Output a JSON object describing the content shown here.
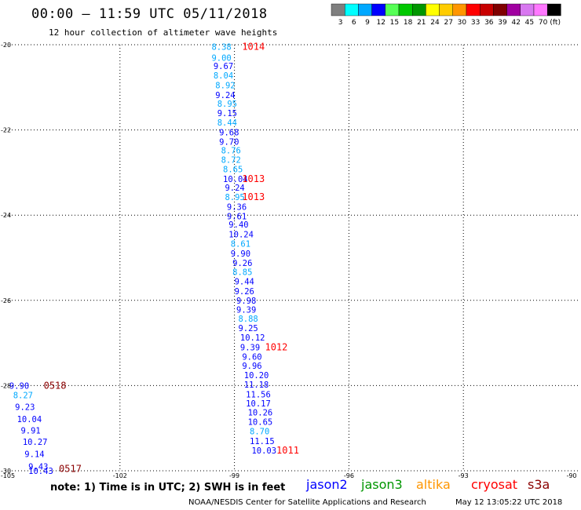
{
  "header": {
    "title": "00:00 — 11:59 UTC 05/11/2018",
    "subtitle": "12 hour collection of altimeter wave heights"
  },
  "legend": {
    "unit": "(ft)",
    "bins": [
      {
        "label": "3",
        "color": "#7f7f7f"
      },
      {
        "label": "6",
        "color": "#00ffff"
      },
      {
        "label": "9",
        "color": "#00a8ff"
      },
      {
        "label": "12",
        "color": "#0000ff"
      },
      {
        "label": "15",
        "color": "#55ff55"
      },
      {
        "label": "18",
        "color": "#00c800"
      },
      {
        "label": "21",
        "color": "#009600"
      },
      {
        "label": "24",
        "color": "#ffff00"
      },
      {
        "label": "27",
        "color": "#ffcc00"
      },
      {
        "label": "30",
        "color": "#ff9600"
      },
      {
        "label": "33",
        "color": "#ff0000"
      },
      {
        "label": "36",
        "color": "#c80000"
      },
      {
        "label": "39",
        "color": "#7f0000"
      },
      {
        "label": "42",
        "color": "#a000a0"
      },
      {
        "label": "45",
        "color": "#d878f0"
      },
      {
        "label": "70",
        "color": "#ff78ff"
      },
      {
        "label": "",
        "color": "#000000"
      }
    ]
  },
  "axes": {
    "lon_ticks": [
      "-105",
      "-102",
      "-99",
      "-96",
      "-93",
      "-90"
    ],
    "lat_ticks": [
      "-20",
      "-22",
      "-24",
      "-26",
      "-28",
      "-30"
    ]
  },
  "chart_data": {
    "type": "scatter",
    "xlim": [
      -105,
      -90
    ],
    "ylim": [
      -30,
      -20
    ],
    "grid": true,
    "tracks": [
      {
        "name": "track-1",
        "points": [
          {
            "lon": -99.6,
            "lat": -20.05,
            "v": "8.38",
            "c": "#00a8ff"
          },
          {
            "lon": -99.6,
            "lat": -20.3,
            "v": "9.00",
            "c": "#00a8ff"
          },
          {
            "lon": -99.55,
            "lat": -20.5,
            "v": "9.67",
            "c": "#0000ff"
          },
          {
            "lon": -99.55,
            "lat": -20.72,
            "v": "8.04",
            "c": "#00a8ff"
          },
          {
            "lon": -99.5,
            "lat": -20.95,
            "v": "8.92",
            "c": "#00a8ff"
          },
          {
            "lon": -99.5,
            "lat": -21.18,
            "v": "9.24",
            "c": "#0000ff"
          },
          {
            "lon": -99.45,
            "lat": -21.38,
            "v": "8.95",
            "c": "#00a8ff"
          },
          {
            "lon": -99.45,
            "lat": -21.6,
            "v": "9.15",
            "c": "#0000ff"
          },
          {
            "lon": -99.45,
            "lat": -21.82,
            "v": "8.44",
            "c": "#00a8ff"
          },
          {
            "lon": -99.4,
            "lat": -22.05,
            "v": "9.68",
            "c": "#0000ff"
          },
          {
            "lon": -99.4,
            "lat": -22.27,
            "v": "9.70",
            "c": "#0000ff"
          },
          {
            "lon": -99.35,
            "lat": -22.48,
            "v": "8.76",
            "c": "#00a8ff"
          },
          {
            "lon": -99.35,
            "lat": -22.7,
            "v": "8.72",
            "c": "#00a8ff"
          },
          {
            "lon": -99.3,
            "lat": -22.92,
            "v": "8.65",
            "c": "#00a8ff"
          },
          {
            "lon": -99.3,
            "lat": -23.15,
            "v": "10.04",
            "c": "#0000ff"
          },
          {
            "lon": -99.25,
            "lat": -23.35,
            "v": "9.24",
            "c": "#0000ff"
          },
          {
            "lon": -99.25,
            "lat": -23.57,
            "v": "8.95",
            "c": "#00a8ff"
          },
          {
            "lon": -99.2,
            "lat": -23.8,
            "v": "9.36",
            "c": "#0000ff"
          },
          {
            "lon": -99.2,
            "lat": -24.02,
            "v": "9.61",
            "c": "#0000ff"
          },
          {
            "lon": -99.15,
            "lat": -24.22,
            "v": "9.40",
            "c": "#0000ff"
          },
          {
            "lon": -99.15,
            "lat": -24.45,
            "v": "10.24",
            "c": "#0000ff"
          },
          {
            "lon": -99.1,
            "lat": -24.67,
            "v": "8.61",
            "c": "#00a8ff"
          },
          {
            "lon": -99.1,
            "lat": -24.9,
            "v": "9.90",
            "c": "#0000ff"
          },
          {
            "lon": -99.05,
            "lat": -25.12,
            "v": "9.26",
            "c": "#0000ff"
          },
          {
            "lon": -99.05,
            "lat": -25.33,
            "v": "8.85",
            "c": "#00a8ff"
          },
          {
            "lon": -99.0,
            "lat": -25.55,
            "v": "9.44",
            "c": "#0000ff"
          },
          {
            "lon": -99.0,
            "lat": -25.78,
            "v": "9.26",
            "c": "#0000ff"
          },
          {
            "lon": -98.95,
            "lat": -26.0,
            "v": "9.98",
            "c": "#0000ff"
          },
          {
            "lon": -98.95,
            "lat": -26.22,
            "v": "9.39",
            "c": "#0000ff"
          },
          {
            "lon": -98.9,
            "lat": -26.43,
            "v": "8.88",
            "c": "#00a8ff"
          },
          {
            "lon": -98.9,
            "lat": -26.65,
            "v": "9.25",
            "c": "#0000ff"
          },
          {
            "lon": -98.85,
            "lat": -26.87,
            "v": "10.12",
            "c": "#0000ff"
          },
          {
            "lon": -98.85,
            "lat": -27.1,
            "v": "9.39",
            "c": "#0000ff"
          },
          {
            "lon": -98.8,
            "lat": -27.32,
            "v": "9.60",
            "c": "#0000ff"
          },
          {
            "lon": -98.8,
            "lat": -27.53,
            "v": "9.96",
            "c": "#0000ff"
          },
          {
            "lon": -98.75,
            "lat": -27.75,
            "v": "10.20",
            "c": "#0000ff"
          },
          {
            "lon": -98.75,
            "lat": -27.97,
            "v": "11.18",
            "c": "#0000ff"
          },
          {
            "lon": -98.7,
            "lat": -28.2,
            "v": "11.56",
            "c": "#0000ff"
          },
          {
            "lon": -98.7,
            "lat": -28.42,
            "v": "10.17",
            "c": "#0000ff"
          },
          {
            "lon": -98.65,
            "lat": -28.63,
            "v": "10.26",
            "c": "#0000ff"
          },
          {
            "lon": -98.65,
            "lat": -28.85,
            "v": "10.65",
            "c": "#0000ff"
          },
          {
            "lon": -98.6,
            "lat": -29.07,
            "v": "8.70",
            "c": "#00a8ff"
          },
          {
            "lon": -98.6,
            "lat": -29.3,
            "v": "11.15",
            "c": "#0000ff"
          },
          {
            "lon": -98.55,
            "lat": -29.52,
            "v": "10.03",
            "c": "#0000ff"
          }
        ]
      },
      {
        "name": "track-2",
        "points": [
          {
            "lon": -104.9,
            "lat": -28.0,
            "v": "9.90",
            "c": "#0000ff"
          },
          {
            "lon": -104.8,
            "lat": -28.22,
            "v": "8.27",
            "c": "#00a8ff"
          },
          {
            "lon": -104.75,
            "lat": -28.5,
            "v": "9.23",
            "c": "#0000ff"
          },
          {
            "lon": -104.7,
            "lat": -28.78,
            "v": "10.04",
            "c": "#0000ff"
          },
          {
            "lon": -104.6,
            "lat": -29.05,
            "v": "9.91",
            "c": "#0000ff"
          },
          {
            "lon": -104.55,
            "lat": -29.32,
            "v": "10.27",
            "c": "#0000ff"
          },
          {
            "lon": -104.5,
            "lat": -29.6,
            "v": "9.14",
            "c": "#0000ff"
          },
          {
            "lon": -104.4,
            "lat": -29.9,
            "v": "9.43",
            "c": "#0000ff"
          },
          {
            "lon": -104.4,
            "lat": -30.0,
            "v": "10.43",
            "c": "#0000ff"
          }
        ]
      }
    ],
    "times": [
      {
        "lon": -98.8,
        "lat": -20.05,
        "t": "1014",
        "c": "#ff0000"
      },
      {
        "lon": -98.8,
        "lat": -23.15,
        "t": "1013",
        "c": "#ff0000"
      },
      {
        "lon": -98.8,
        "lat": -23.57,
        "t": "1013",
        "c": "#ff0000"
      },
      {
        "lon": -98.2,
        "lat": -27.1,
        "t": "1012",
        "c": "#ff0000"
      },
      {
        "lon": -97.9,
        "lat": -29.52,
        "t": "1011",
        "c": "#ff0000"
      },
      {
        "lon": -104.0,
        "lat": -28.0,
        "t": "0518",
        "c": "#8b0000"
      },
      {
        "lon": -103.6,
        "lat": -29.95,
        "t": "0517",
        "c": "#8b0000"
      }
    ]
  },
  "notes": {
    "text": "note: 1) Time is in UTC; 2) SWH is in feet"
  },
  "satellites": [
    {
      "name": "jason2",
      "color": "#0000ff"
    },
    {
      "name": "jason3",
      "color": "#009600"
    },
    {
      "name": "altika",
      "color": "#ff9600"
    },
    {
      "name": "cryosat",
      "color": "#ff0000"
    },
    {
      "name": "s3a",
      "color": "#8b0000"
    }
  ],
  "footer": {
    "credit": "NOAA/NESDIS Center for Satellite Applications and Research",
    "timestamp": "May 12 13:05:22 UTC 2018"
  }
}
